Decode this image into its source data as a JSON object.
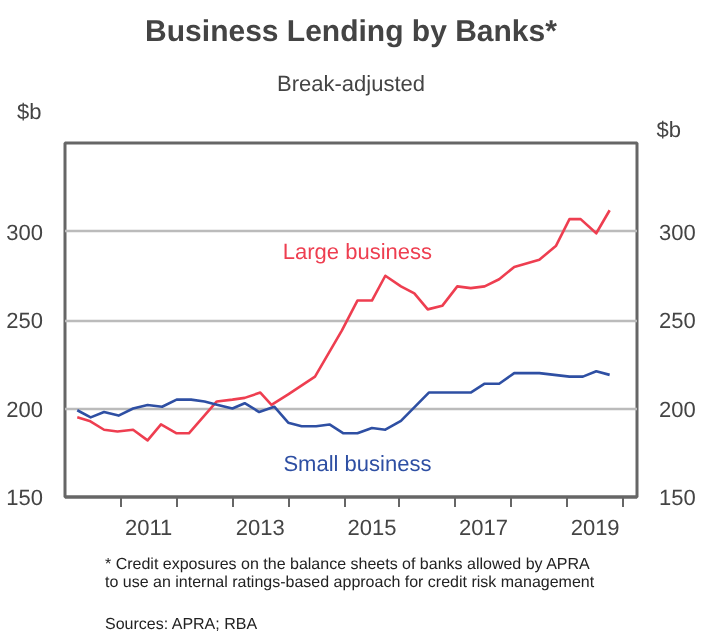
{
  "chart_data": {
    "type": "line",
    "title": "Business Lending by Banks*",
    "subtitle": "Break-adjusted",
    "ylabel": "$b",
    "y2label": "$b",
    "xlim": [
      2010,
      2020.25
    ],
    "xticks": [
      {
        "value": 2011,
        "label": null
      },
      {
        "value": 2012,
        "label": null
      },
      {
        "value": 2013,
        "label": null
      },
      {
        "value": 2014,
        "label": null
      },
      {
        "value": 2015,
        "label": null
      },
      {
        "value": 2016,
        "label": null
      },
      {
        "value": 2017,
        "label": null
      },
      {
        "value": 2018,
        "label": null
      },
      {
        "value": 2019,
        "label": null
      },
      {
        "value": 2020,
        "label": null
      },
      {
        "value": 2011.5,
        "label": "2011"
      },
      {
        "value": 2013.5,
        "label": "2013"
      },
      {
        "value": 2015.5,
        "label": "2015"
      },
      {
        "value": 2017.5,
        "label": "2017"
      },
      {
        "value": 2019.5,
        "label": "2019"
      }
    ],
    "ylim": [
      150,
      350
    ],
    "yticks": [
      150,
      200,
      250,
      300
    ],
    "y2lim": [
      150,
      350
    ],
    "y2ticks": [
      150,
      200,
      250,
      300
    ],
    "grid": "y",
    "series": [
      {
        "name": "Large business",
        "color": "#ee3e50",
        "x": [
          2010.22,
          2010.44,
          2010.7,
          2010.94,
          2011.22,
          2011.48,
          2011.72,
          2012.0,
          2012.22,
          2012.72,
          2013.0,
          2013.22,
          2013.5,
          2013.7,
          2014.0,
          2014.48,
          2014.96,
          2015.24,
          2015.5,
          2015.74,
          2016.02,
          2016.26,
          2016.5,
          2016.76,
          2017.03,
          2017.27,
          2017.52,
          2017.78,
          2018.05,
          2018.5,
          2018.8,
          2019.04,
          2019.24,
          2019.52,
          2019.76
        ],
        "values": [
          195,
          193,
          188,
          187,
          188,
          182,
          191,
          186,
          186,
          204,
          205,
          206,
          209,
          202,
          208,
          218,
          244,
          261,
          261,
          275,
          269,
          265,
          256,
          258,
          269,
          268,
          269,
          273,
          280,
          284,
          292,
          307,
          307,
          299,
          312
        ]
      },
      {
        "name": "Small business",
        "color": "#2e4fa3",
        "x": [
          2010.22,
          2010.46,
          2010.7,
          2010.96,
          2011.22,
          2011.48,
          2011.74,
          2012.0,
          2012.26,
          2012.5,
          2012.74,
          2013.0,
          2013.22,
          2013.48,
          2013.75,
          2014.0,
          2014.24,
          2014.5,
          2014.74,
          2014.99,
          2015.24,
          2015.5,
          2015.74,
          2016.02,
          2016.52,
          2017.03,
          2017.27,
          2017.52,
          2017.78,
          2018.05,
          2018.5,
          2019.04,
          2019.28,
          2019.52,
          2019.76
        ],
        "values": [
          199,
          195,
          198,
          196,
          200,
          202,
          201,
          205,
          205,
          204,
          202,
          200,
          203,
          198,
          201,
          192,
          190,
          190,
          191,
          186,
          186,
          189,
          188,
          193,
          209,
          209,
          209,
          214,
          214,
          220,
          220,
          218,
          218,
          221,
          219
        ]
      }
    ],
    "annotations": [
      "*    Credit exposures on the balance sheets of banks allowed by APRA\n      to use an internal ratings-based approach for credit risk management",
      "Sources: APRA; RBA"
    ]
  }
}
